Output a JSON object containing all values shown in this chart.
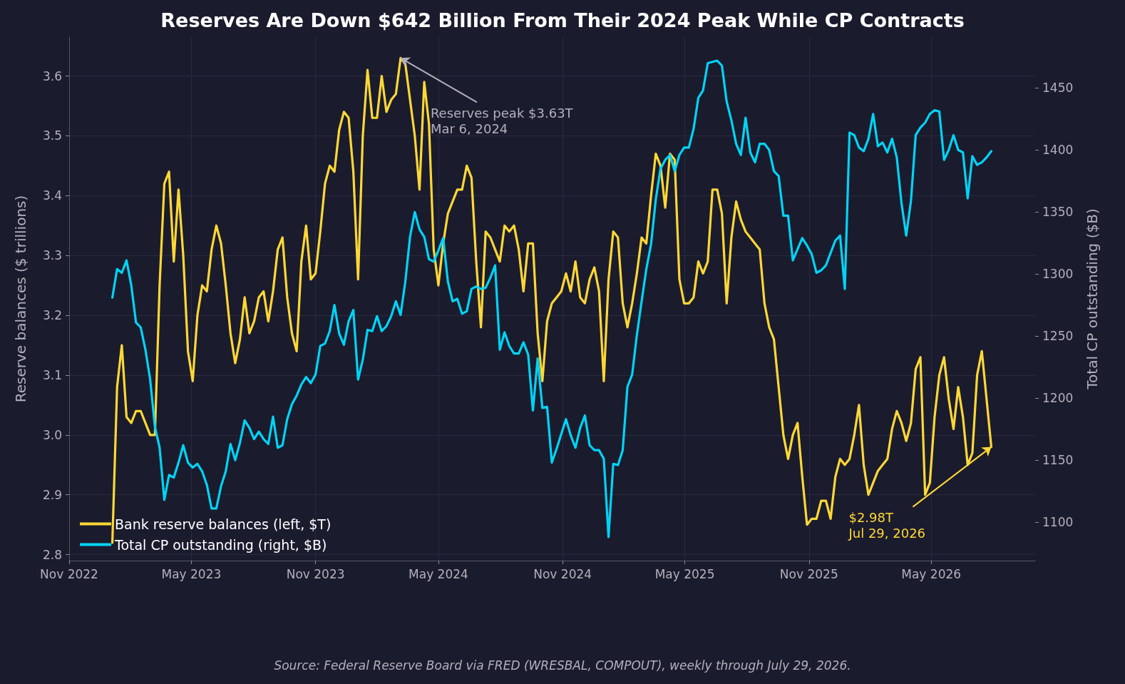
{
  "chart_data": {
    "type": "line",
    "title": "Reserves Are Down $642 Billion From Their 2024 Peak While CP Contracts",
    "ylabel": "Reserve balances ($ trillions)",
    "y2label": "Total CP outstanding ($B)",
    "x": [
      "2023-01-04",
      "2023-01-11",
      "2023-01-18",
      "2023-01-25",
      "2023-02-01",
      "2023-02-08",
      "2023-02-15",
      "2023-02-22",
      "2023-03-01",
      "2023-03-08",
      "2023-03-15",
      "2023-03-22",
      "2023-03-29",
      "2023-04-05",
      "2023-04-12",
      "2023-04-19",
      "2023-04-26",
      "2023-05-03",
      "2023-05-10",
      "2023-05-17",
      "2023-05-24",
      "2023-05-31",
      "2023-06-07",
      "2023-06-14",
      "2023-06-21",
      "2023-06-28",
      "2023-07-05",
      "2023-07-12",
      "2023-07-19",
      "2023-07-26",
      "2023-08-02",
      "2023-08-09",
      "2023-08-16",
      "2023-08-23",
      "2023-08-30",
      "2023-09-06",
      "2023-09-13",
      "2023-09-20",
      "2023-09-27",
      "2023-10-04",
      "2023-10-11",
      "2023-10-18",
      "2023-10-25",
      "2023-11-01",
      "2023-11-08",
      "2023-11-15",
      "2023-11-22",
      "2023-11-29",
      "2023-12-06",
      "2023-12-13",
      "2023-12-20",
      "2023-12-27",
      "2024-01-03",
      "2024-01-10",
      "2024-01-17",
      "2024-01-24",
      "2024-01-31",
      "2024-02-07",
      "2024-02-14",
      "2024-02-21",
      "2024-02-28",
      "2024-03-06",
      "2024-03-13",
      "2024-03-20",
      "2024-03-27",
      "2024-04-03",
      "2024-04-10",
      "2024-04-17",
      "2024-04-24",
      "2024-05-01",
      "2024-05-08",
      "2024-05-15",
      "2024-05-22",
      "2024-05-29",
      "2024-06-05",
      "2024-06-12",
      "2024-06-19",
      "2024-06-26",
      "2024-07-03",
      "2024-07-10",
      "2024-07-17",
      "2024-07-24",
      "2024-07-31",
      "2024-08-07",
      "2024-08-14",
      "2024-08-21",
      "2024-08-28",
      "2024-09-04",
      "2024-09-11",
      "2024-09-18",
      "2024-09-25",
      "2024-10-02",
      "2024-10-09",
      "2024-10-16",
      "2024-10-23",
      "2024-10-30",
      "2024-11-06",
      "2024-11-13",
      "2024-11-20",
      "2024-11-27",
      "2024-12-04",
      "2024-12-11",
      "2024-12-18",
      "2024-12-25",
      "2025-01-01",
      "2025-01-08",
      "2025-01-15",
      "2025-01-22",
      "2025-01-29",
      "2025-02-05",
      "2025-02-12",
      "2025-02-19",
      "2025-02-26",
      "2025-03-05",
      "2025-03-12",
      "2025-03-19",
      "2025-03-26",
      "2025-04-02",
      "2025-04-09",
      "2025-04-16",
      "2025-04-23",
      "2025-04-30",
      "2025-05-07",
      "2025-05-14",
      "2025-05-21",
      "2025-05-28",
      "2025-06-04",
      "2025-06-11",
      "2025-06-18",
      "2025-06-25",
      "2025-07-02",
      "2025-07-09",
      "2025-07-16",
      "2025-07-23",
      "2025-07-30",
      "2025-08-06",
      "2025-08-13",
      "2025-08-20",
      "2025-08-27",
      "2025-09-03",
      "2025-09-10",
      "2025-09-17",
      "2025-09-24",
      "2025-10-01",
      "2025-10-08",
      "2025-10-15",
      "2025-10-22",
      "2025-10-29",
      "2025-11-05",
      "2025-11-12",
      "2025-11-19",
      "2025-11-26",
      "2025-12-03",
      "2025-12-10",
      "2025-12-17",
      "2025-12-24",
      "2025-12-31",
      "2026-01-07",
      "2026-01-14",
      "2026-01-21",
      "2026-01-28",
      "2026-02-04",
      "2026-02-11",
      "2026-02-18",
      "2026-02-25",
      "2026-03-04",
      "2026-03-11",
      "2026-03-18",
      "2026-03-25",
      "2026-04-01",
      "2026-04-08",
      "2026-04-15",
      "2026-04-22",
      "2026-04-29",
      "2026-05-06",
      "2026-05-13",
      "2026-05-20",
      "2026-05-27",
      "2026-06-03",
      "2026-06-10",
      "2026-06-17",
      "2026-06-24",
      "2026-07-01",
      "2026-07-08",
      "2026-07-15",
      "2026-07-22",
      "2026-07-29"
    ],
    "series": [
      {
        "name": "Bank reserve balances (left, $T)",
        "color": "#fdd835",
        "values": [
          2.82,
          3.08,
          3.15,
          3.03,
          3.02,
          3.04,
          3.04,
          3.02,
          3.0,
          3.0,
          3.25,
          3.42,
          3.44,
          3.29,
          3.41,
          3.3,
          3.14,
          3.09,
          3.2,
          3.25,
          3.24,
          3.31,
          3.35,
          3.32,
          3.25,
          3.17,
          3.12,
          3.16,
          3.23,
          3.17,
          3.19,
          3.23,
          3.24,
          3.19,
          3.24,
          3.31,
          3.33,
          3.23,
          3.17,
          3.14,
          3.29,
          3.35,
          3.26,
          3.27,
          3.34,
          3.42,
          3.45,
          3.44,
          3.51,
          3.54,
          3.53,
          3.44,
          3.26,
          3.5,
          3.61,
          3.53,
          3.53,
          3.6,
          3.54,
          3.56,
          3.57,
          3.63,
          3.62,
          3.56,
          3.5,
          3.41,
          3.59,
          3.52,
          3.31,
          3.25,
          3.32,
          3.37,
          3.39,
          3.41,
          3.41,
          3.45,
          3.43,
          3.29,
          3.18,
          3.34,
          3.33,
          3.31,
          3.29,
          3.35,
          3.34,
          3.35,
          3.31,
          3.24,
          3.32,
          3.32,
          3.17,
          3.09,
          3.19,
          3.22,
          3.23,
          3.24,
          3.27,
          3.24,
          3.29,
          3.23,
          3.22,
          3.26,
          3.28,
          3.24,
          3.09,
          3.26,
          3.34,
          3.33,
          3.22,
          3.18,
          3.22,
          3.27,
          3.33,
          3.32,
          3.4,
          3.47,
          3.45,
          3.38,
          3.47,
          3.46,
          3.26,
          3.22,
          3.22,
          3.23,
          3.29,
          3.27,
          3.29,
          3.41,
          3.41,
          3.37,
          3.22,
          3.33,
          3.39,
          3.36,
          3.34,
          3.33,
          3.32,
          3.31,
          3.22,
          3.18,
          3.16,
          3.08,
          3.0,
          2.96,
          3.0,
          3.02,
          2.93,
          2.85,
          2.86,
          2.86,
          2.89,
          2.89,
          2.86,
          2.93,
          2.96,
          2.95,
          2.96,
          3.0,
          3.05,
          2.95,
          2.9,
          2.92,
          2.94,
          2.95,
          2.96,
          3.01,
          3.04,
          3.02,
          2.99,
          3.02,
          3.11,
          3.13,
          2.9,
          2.92,
          3.03,
          3.1,
          3.13,
          3.06,
          3.01,
          3.08,
          3.03,
          2.95,
          2.97,
          3.1,
          3.14,
          3.06,
          2.98
        ]
      },
      {
        "name": "Total CP outstanding (right, $B)",
        "color": "#00d4f5",
        "axis": "y2",
        "values": [
          1281,
          1304,
          1301,
          1311,
          1291,
          1261,
          1257,
          1239,
          1215,
          1177,
          1160,
          1118,
          1138,
          1136,
          1148,
          1162,
          1148,
          1144,
          1147,
          1141,
          1130,
          1111,
          1111,
          1129,
          1141,
          1163,
          1150,
          1164,
          1182,
          1176,
          1167,
          1173,
          1167,
          1163,
          1185,
          1160,
          1162,
          1183,
          1195,
          1202,
          1211,
          1217,
          1212,
          1219,
          1242,
          1244,
          1254,
          1275,
          1252,
          1243,
          1262,
          1271,
          1215,
          1231,
          1255,
          1254,
          1266,
          1254,
          1258,
          1266,
          1278,
          1267,
          1294,
          1330,
          1350,
          1336,
          1330,
          1312,
          1310,
          1319,
          1329,
          1294,
          1278,
          1280,
          1268,
          1270,
          1288,
          1290,
          1288,
          1289,
          1297,
          1307,
          1239,
          1253,
          1242,
          1236,
          1236,
          1245,
          1235,
          1190,
          1232,
          1192,
          1193,
          1148,
          1159,
          1171,
          1183,
          1170,
          1160,
          1176,
          1186,
          1162,
          1158,
          1158,
          1151,
          1088,
          1147,
          1146,
          1158,
          1209,
          1219,
          1251,
          1278,
          1304,
          1324,
          1360,
          1385,
          1392,
          1396,
          1383,
          1396,
          1402,
          1402,
          1417,
          1442,
          1448,
          1470,
          1471,
          1472,
          1468,
          1439,
          1424,
          1405,
          1396,
          1426,
          1398,
          1390,
          1405,
          1405,
          1400,
          1383,
          1379,
          1347,
          1347,
          1311,
          1320,
          1329,
          1323,
          1316,
          1301,
          1303,
          1307,
          1317,
          1327,
          1331,
          1288,
          1414,
          1412,
          1402,
          1399,
          1409,
          1429,
          1403,
          1406,
          1398,
          1409,
          1394,
          1357,
          1331,
          1359,
          1412,
          1418,
          1422,
          1429,
          1432,
          1431,
          1392,
          1400,
          1412,
          1400,
          1398,
          1361,
          1395,
          1388,
          1390,
          1394,
          1399
        ]
      }
    ],
    "xlim": [
      "2022-11-01",
      "2026-10-02"
    ],
    "xticks": [
      {
        "value": "2022-11-01",
        "label": "Nov 2022"
      },
      {
        "value": "2023-05-01",
        "label": "May 2023"
      },
      {
        "value": "2023-11-01",
        "label": "Nov 2023"
      },
      {
        "value": "2024-05-01",
        "label": "May 2024"
      },
      {
        "value": "2024-11-01",
        "label": "Nov 2024"
      },
      {
        "value": "2025-05-01",
        "label": "May 2025"
      },
      {
        "value": "2025-11-01",
        "label": "Nov 2025"
      },
      {
        "value": "2026-05-01",
        "label": "May 2026"
      }
    ],
    "ylim": [
      2.79,
      3.665
    ],
    "yticks": [
      2.8,
      2.9,
      {
        "value": 3,
        "label": "3.0"
      },
      3.1,
      3.2,
      3.3,
      3.4,
      3.5,
      3.6
    ],
    "y2lim": [
      1069,
      1491
    ],
    "y2ticks": [
      1100,
      1150,
      1200,
      1250,
      1300,
      1350,
      1400,
      1450
    ],
    "grid": true,
    "legend": "bottom left",
    "annotations": [
      {
        "text": "Reserves peak $3.63T\nMar 6, 2024",
        "x": "2024-03-06",
        "y": 3.63
      },
      {
        "text": "$2.98T\nJul 29, 2026",
        "x": "2026-07-29",
        "y": 2.98
      },
      "Source: Federal Reserve Board via FRED (WRESBAL, COMPOUT), weekly through July 29, 2026."
    ]
  }
}
